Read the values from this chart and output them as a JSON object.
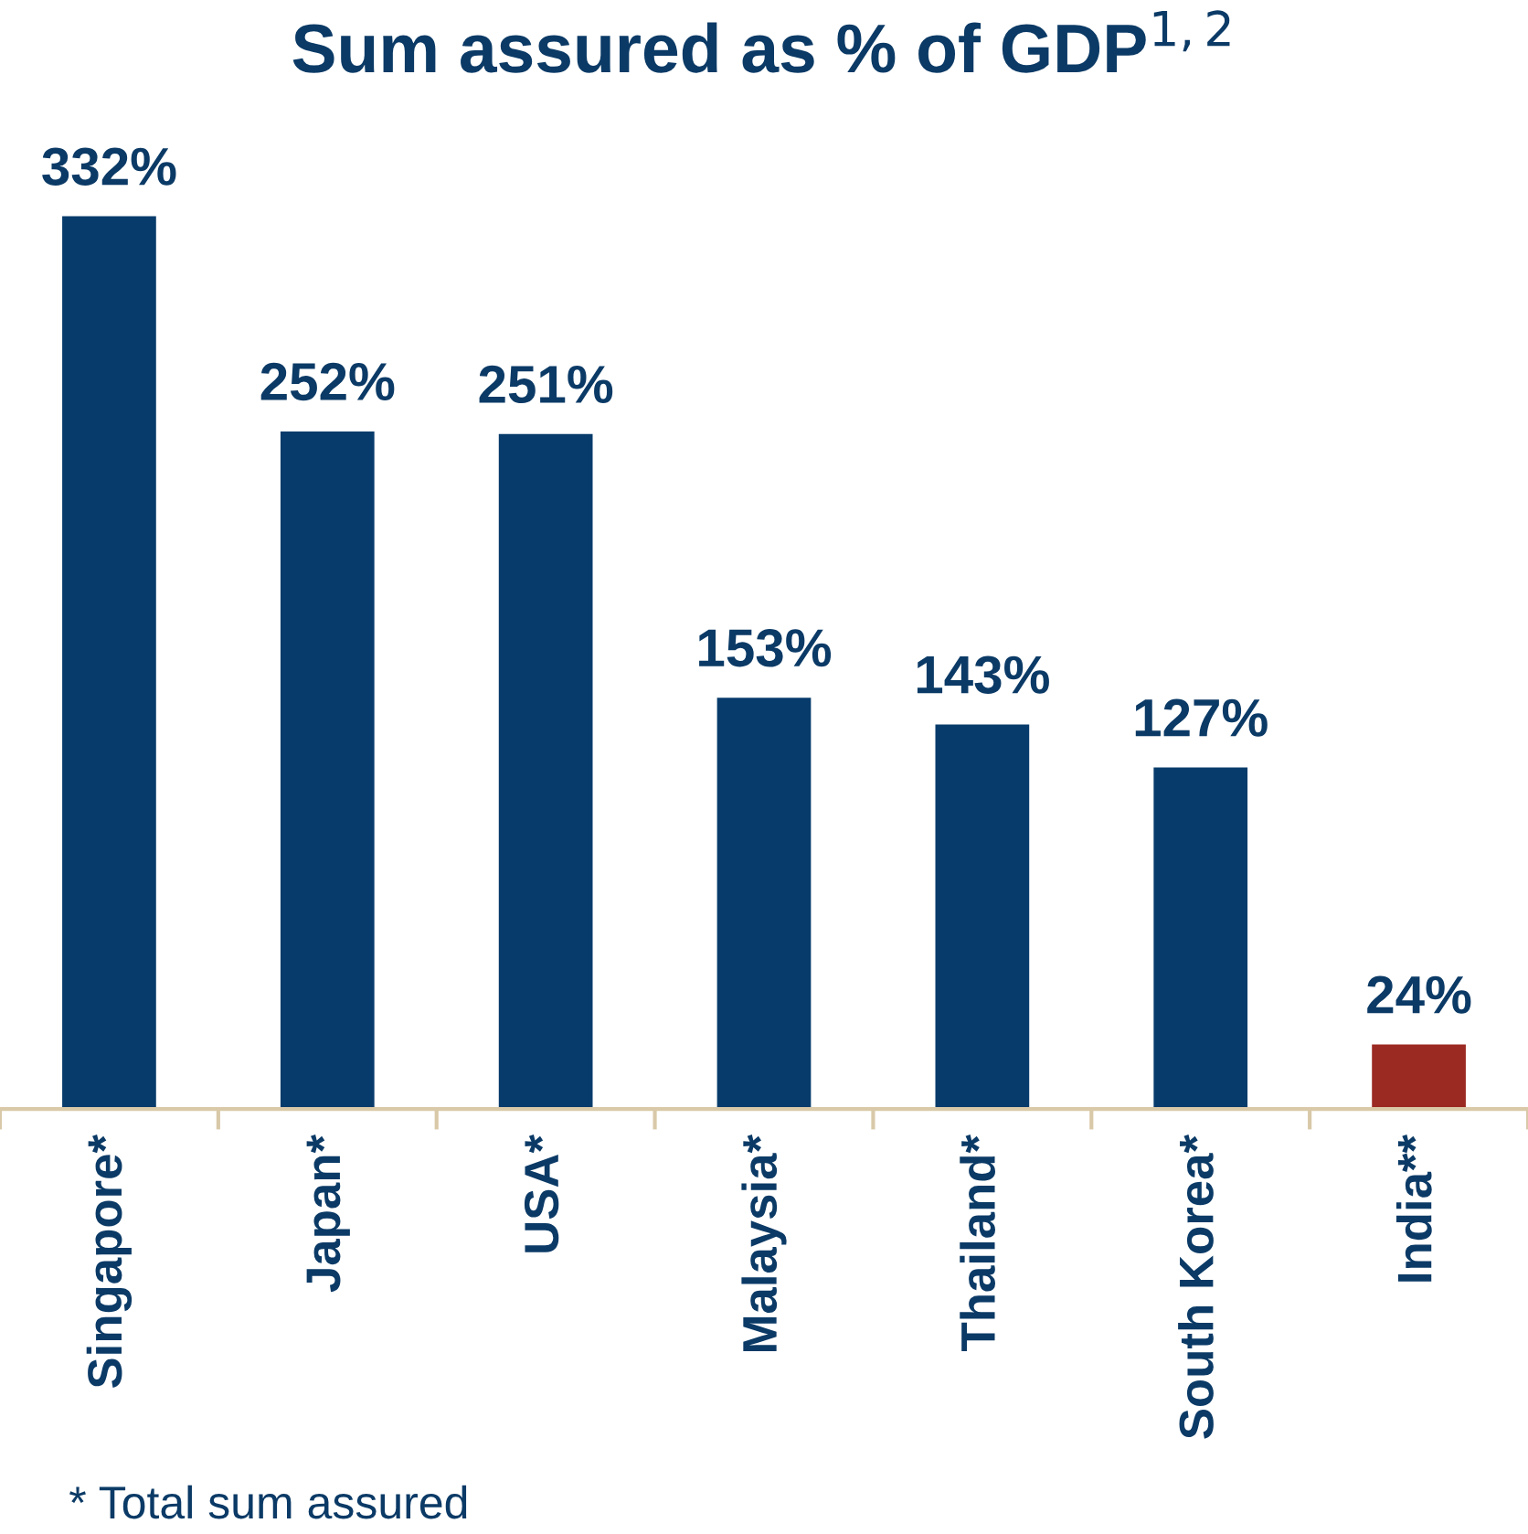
{
  "chart_data": {
    "type": "bar",
    "title": "Sum assured as % of GDP$^{1,2}$",
    "categories": [
      "Singapore*",
      "Japan*",
      "USA*",
      "Malaysia*",
      "Thailand*",
      "South Korea*",
      "India**"
    ],
    "values": [
      332,
      252,
      251,
      153,
      143,
      127,
      24
    ],
    "colors": [
      "#073b6b",
      "#073b6b",
      "#073b6b",
      "#073b6b",
      "#073b6b",
      "#073b6b",
      "#9b2a22"
    ],
    "value_labels": [
      "332%",
      "252%",
      "251%",
      "153%",
      "143%",
      "127%",
      "24%"
    ],
    "annotations": [
      "* Total sum assured"
    ],
    "grid": false,
    "legend": false
  }
}
